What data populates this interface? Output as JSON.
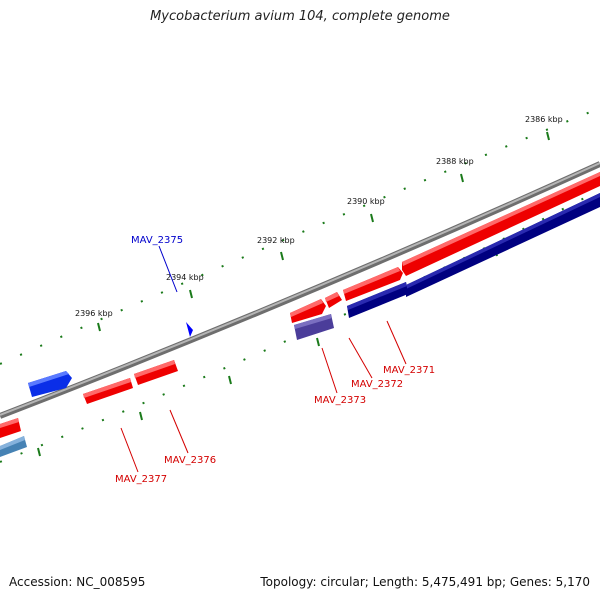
{
  "title": "Mycobacterium avium 104, complete genome",
  "footer": {
    "accession": "Accession: NC_008595",
    "summary": "Topology: circular; Length: 5,475,491 bp; Genes: 5,170"
  },
  "colors": {
    "backbone": "#8a8a8a",
    "forward_gene": "#ff0000",
    "reverse_gene": "#000080",
    "highlight_forward": "#0000ff",
    "pseudo_gene": "#4b3d9a",
    "steel_gene": "#4682b4",
    "tick": "#1a7a1a",
    "gene_label_red": "#d40000",
    "gene_label_blue": "#0000cc"
  },
  "scale_labels": [
    "2386 kbp",
    "2388 kbp",
    "2390 kbp",
    "2392 kbp",
    "2394 kbp",
    "2396 kbp"
  ],
  "gene_labels": [
    {
      "id": "MAV_2375",
      "text": "MAV_2375",
      "color": "gene_label_blue"
    },
    {
      "id": "MAV_2371",
      "text": "MAV_2371",
      "color": "gene_label_red"
    },
    {
      "id": "MAV_2372",
      "text": "MAV_2372",
      "color": "gene_label_red"
    },
    {
      "id": "MAV_2373",
      "text": "MAV_2373",
      "color": "gene_label_red"
    },
    {
      "id": "MAV_2376",
      "text": "MAV_2376",
      "color": "gene_label_red"
    },
    {
      "id": "MAV_2377",
      "text": "MAV_2377",
      "color": "gene_label_red"
    }
  ]
}
